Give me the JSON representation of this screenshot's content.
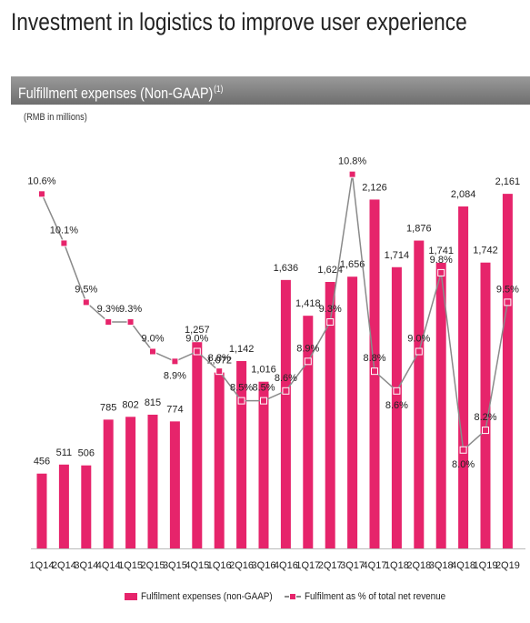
{
  "title": "Investment in logistics to improve user experience",
  "section": {
    "title": "Fulfillment expenses (Non-GAAP)",
    "footnote": "(1)"
  },
  "units_note": "(RMB in millions)",
  "colors": {
    "bar": "#e6246b",
    "line": "#8a8a8a",
    "marker": "#e6246b"
  },
  "chart_data": {
    "type": "bar",
    "categories": [
      "1Q14",
      "2Q14",
      "3Q14",
      "4Q14",
      "1Q15",
      "2Q15",
      "3Q15",
      "4Q15",
      "1Q16",
      "2Q16",
      "3Q16",
      "4Q16",
      "1Q17",
      "2Q17",
      "3Q17",
      "4Q17",
      "1Q18",
      "2Q18",
      "3Q18",
      "4Q18",
      "1Q19",
      "2Q19"
    ],
    "series": [
      {
        "name": "Fulfilment expenses (non-GAAP)",
        "type": "bar",
        "axis": "left",
        "values": [
          456,
          511,
          506,
          785,
          802,
          815,
          774,
          1257,
          1072,
          1142,
          1016,
          1636,
          1418,
          1624,
          1656,
          2126,
          1714,
          1876,
          1741,
          2084,
          1742,
          2161
        ],
        "labels": [
          "456",
          "511",
          "506",
          "785",
          "802",
          "815",
          "774",
          "1,257",
          "1,072",
          "1,142",
          "1,016",
          "1,636",
          "1,418",
          "1,624",
          "1,656",
          "2,126",
          "1,714",
          "1,876",
          "1,741",
          "2,084",
          "1,742",
          "2,161"
        ]
      },
      {
        "name": "Fulfilment as % of total net revenue",
        "type": "line",
        "axis": "right",
        "values": [
          10.6,
          10.1,
          9.5,
          9.3,
          9.3,
          9.0,
          8.9,
          9.0,
          8.8,
          8.5,
          8.5,
          8.6,
          8.9,
          9.3,
          10.8,
          8.8,
          8.6,
          9.0,
          9.8,
          8.0,
          8.2,
          9.5
        ],
        "labels": [
          "10.6%",
          "10.1%",
          "9.5%",
          "9.3%",
          "9.3%",
          "9.0%",
          "8.9%",
          "9.0%",
          "8.8%",
          "8.5%",
          "8.5%",
          "8.6%",
          "8.9%",
          "9.3%",
          "10.8%",
          "8.8%",
          "8.6%",
          "9.0%",
          "9.8%",
          "8.0%",
          "8.2%",
          "9.5%"
        ]
      }
    ],
    "ylim": [
      0,
      2400
    ],
    "y2lim": [
      7.0,
      11.0
    ],
    "legend": "bottom",
    "grid": false
  }
}
